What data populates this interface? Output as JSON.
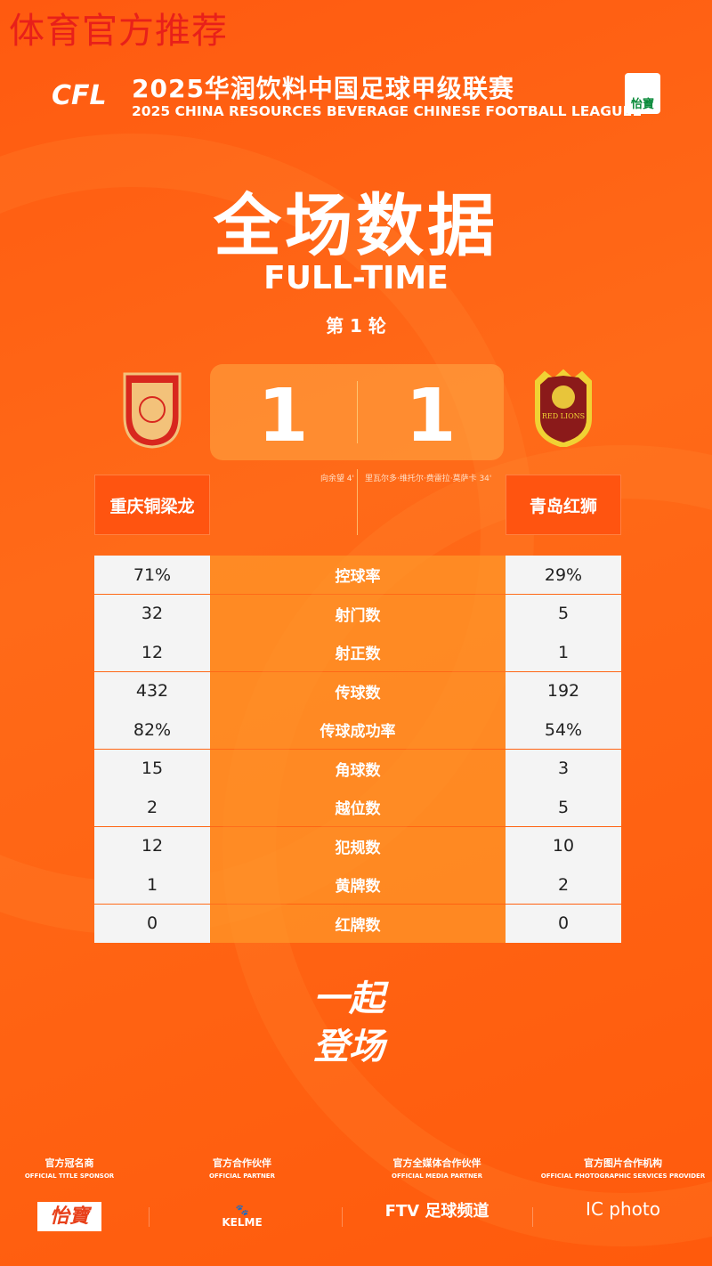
{
  "watermark": "体育官方推荐",
  "header": {
    "logo": "CFL",
    "title_cn": "2025华润饮料中国足球甲级联赛",
    "title_en": "2025 CHINA RESOURCES BEVERAGE CHINESE FOOTBALL LEAGUE1",
    "badge": "怡寶"
  },
  "title": "全场数据",
  "subtitle": "FULL-TIME",
  "round": "第 1 轮",
  "home": {
    "name": "重庆铜梁龙",
    "score": "1",
    "scorers": "向余望 4'"
  },
  "away": {
    "name": "青岛红狮",
    "score": "1",
    "scorers": "里瓦尔多·维托尔·费雷拉·莫萨卡 34'",
    "crest_text": "RED LIONS"
  },
  "stats": [
    {
      "label": "控球率",
      "home": "71%",
      "away": "29%"
    },
    {
      "label": "射门数",
      "home": "32",
      "away": "5"
    },
    {
      "label": "射正数",
      "home": "12",
      "away": "1"
    },
    {
      "label": "传球数",
      "home": "432",
      "away": "192"
    },
    {
      "label": "传球成功率",
      "home": "82%",
      "away": "54%"
    },
    {
      "label": "角球数",
      "home": "15",
      "away": "3"
    },
    {
      "label": "越位数",
      "home": "2",
      "away": "5"
    },
    {
      "label": "犯规数",
      "home": "12",
      "away": "10"
    },
    {
      "label": "黄牌数",
      "home": "1",
      "away": "2"
    },
    {
      "label": "红牌数",
      "home": "0",
      "away": "0"
    }
  ],
  "slogan": [
    "一起",
    "登场"
  ],
  "sponsors": [
    {
      "cn": "官方冠名商",
      "en": "OFFICIAL TITLE SPONSOR",
      "logo": "怡寶"
    },
    {
      "cn": "官方合作伙伴",
      "en": "OFFICIAL PARTNER",
      "logo": "KELME"
    },
    {
      "cn": "官方全媒体合作伙伴",
      "en": "OFFICIAL MEDIA PARTNER",
      "logo": "FTV 足球频道"
    },
    {
      "cn": "官方图片合作机构",
      "en": "OFFICIAL PHOTOGRAPHIC SERVICES PROVIDER",
      "logo": "IC photo"
    }
  ]
}
